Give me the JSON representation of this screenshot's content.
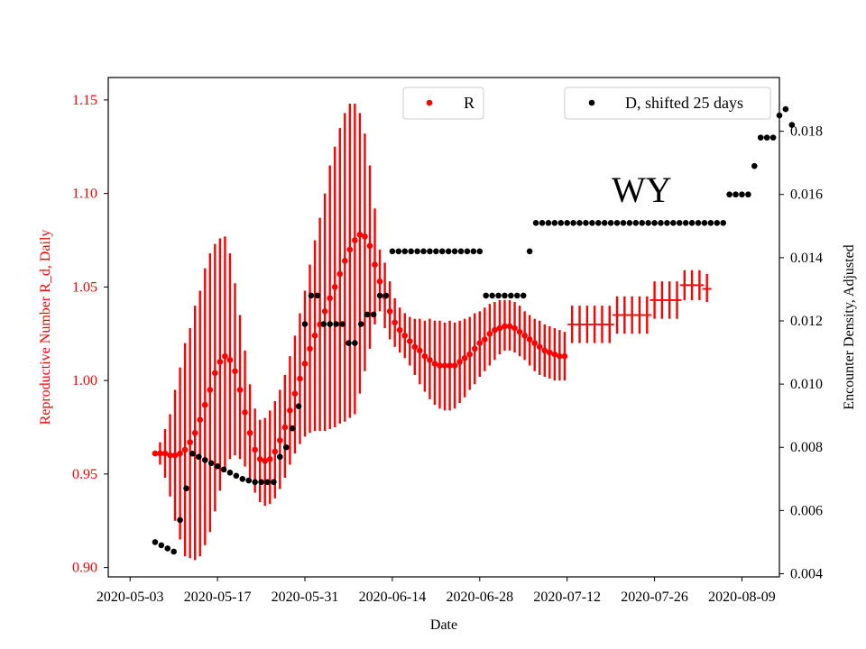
{
  "chart_data": {
    "type": "scatter",
    "title": "",
    "annotation": "WY",
    "xlabel": "Date",
    "ylabel_left": "Reproductive Number R_d, Daily",
    "ylabel_right": "Encounter Density, Adjusted",
    "xlim_days": [
      -3.5,
      104
    ],
    "ylim_left": [
      0.895,
      1.162
    ],
    "ylim_right": [
      0.0039,
      0.0197
    ],
    "x_ticks": [
      {
        "day": 0,
        "label": "2020-05-03"
      },
      {
        "day": 14,
        "label": "2020-05-17"
      },
      {
        "day": 28,
        "label": "2020-05-31"
      },
      {
        "day": 42,
        "label": "2020-06-14"
      },
      {
        "day": 56,
        "label": "2020-06-28"
      },
      {
        "day": 70,
        "label": "2020-07-12"
      },
      {
        "day": 84,
        "label": "2020-07-26"
      },
      {
        "day": 98,
        "label": "2020-08-09"
      }
    ],
    "y_ticks_left": [
      "0.90",
      "0.95",
      "1.00",
      "1.05",
      "1.10",
      "1.15"
    ],
    "y_ticks_right": [
      "0.004",
      "0.006",
      "0.008",
      "0.010",
      "0.012",
      "0.014",
      "0.016",
      "0.018"
    ],
    "legend": [
      {
        "label": "R",
        "color": "#ff0000",
        "position": "top-center"
      },
      {
        "label": "D, shifted 25 days",
        "color": "#000000",
        "position": "top-right"
      }
    ],
    "series": [
      {
        "name": "R",
        "axis": "left",
        "color": "#ff0000",
        "points": [
          [
            4,
            0.961,
            0.961,
            0.961
          ],
          [
            4.8,
            0.961,
            0.955,
            0.967
          ],
          [
            5.6,
            0.961,
            0.948,
            0.974
          ],
          [
            6.4,
            0.96,
            0.938,
            0.982
          ],
          [
            7.2,
            0.96,
            0.925,
            0.995
          ],
          [
            8,
            0.961,
            0.915,
            1.007
          ],
          [
            8.8,
            0.963,
            0.906,
            1.02
          ],
          [
            9.6,
            0.967,
            0.905,
            1.028
          ],
          [
            10.4,
            0.972,
            0.904,
            1.04
          ],
          [
            11.2,
            0.979,
            0.906,
            1.048
          ],
          [
            12,
            0.987,
            0.912,
            1.06
          ],
          [
            12.8,
            0.995,
            0.919,
            1.068
          ],
          [
            13.6,
            1.004,
            0.93,
            1.073
          ],
          [
            14.4,
            1.01,
            0.941,
            1.076
          ],
          [
            15.2,
            1.013,
            0.951,
            1.077
          ],
          [
            16,
            1.011,
            0.958,
            1.068
          ],
          [
            16.8,
            1.005,
            0.96,
            1.052
          ],
          [
            17.6,
            0.995,
            0.958,
            1.035
          ],
          [
            18.4,
            0.983,
            0.954,
            1.016
          ],
          [
            19.2,
            0.972,
            0.946,
            0.998
          ],
          [
            20,
            0.963,
            0.94,
            0.985
          ],
          [
            20.8,
            0.958,
            0.935,
            0.979
          ],
          [
            21.6,
            0.957,
            0.933,
            0.98
          ],
          [
            22.4,
            0.958,
            0.934,
            0.984
          ],
          [
            23.2,
            0.962,
            0.937,
            0.989
          ],
          [
            24,
            0.968,
            0.942,
            0.995
          ],
          [
            24.8,
            0.975,
            0.948,
            1.003
          ],
          [
            25.6,
            0.984,
            0.955,
            1.013
          ],
          [
            26.4,
            0.993,
            0.961,
            1.024
          ],
          [
            27.2,
            1.001,
            0.966,
            1.036
          ],
          [
            28,
            1.009,
            0.97,
            1.048
          ],
          [
            28.8,
            1.017,
            0.972,
            1.062
          ],
          [
            29.6,
            1.024,
            0.973,
            1.075
          ],
          [
            30.4,
            1.03,
            0.973,
            1.087
          ],
          [
            31.2,
            1.037,
            0.973,
            1.1
          ],
          [
            32,
            1.044,
            0.974,
            1.115
          ],
          [
            32.8,
            1.05,
            0.975,
            1.125
          ],
          [
            33.6,
            1.057,
            0.977,
            1.135
          ],
          [
            34.4,
            1.064,
            0.978,
            1.143
          ],
          [
            35.2,
            1.07,
            0.98,
            1.148
          ],
          [
            36,
            1.075,
            0.982,
            1.148
          ],
          [
            36.8,
            1.078,
            0.993,
            1.143
          ],
          [
            37.6,
            1.077,
            1.005,
            1.132
          ],
          [
            38.4,
            1.072,
            1.017,
            1.115
          ],
          [
            39.2,
            1.062,
            1.03,
            1.092
          ],
          [
            40,
            1.053,
            1.037,
            1.07
          ],
          [
            40.8,
            1.045,
            1.028,
            1.063
          ],
          [
            41.6,
            1.037,
            1.022,
            1.053
          ],
          [
            42.4,
            1.031,
            1.018,
            1.044
          ],
          [
            43.2,
            1.027,
            1.015,
            1.039
          ],
          [
            44,
            1.024,
            1.012,
            1.036
          ],
          [
            44.8,
            1.021,
            1.008,
            1.034
          ],
          [
            45.6,
            1.018,
            1.003,
            1.033
          ],
          [
            46.4,
            1.016,
            0.998,
            1.033
          ],
          [
            47.2,
            1.013,
            0.994,
            1.032
          ],
          [
            48,
            1.011,
            0.99,
            1.033
          ],
          [
            48.8,
            1.009,
            0.987,
            1.032
          ],
          [
            49.6,
            1.008,
            0.985,
            1.032
          ],
          [
            50.4,
            1.008,
            0.984,
            1.031
          ],
          [
            51.2,
            1.008,
            0.984,
            1.032
          ],
          [
            52,
            1.008,
            0.985,
            1.031
          ],
          [
            52.8,
            1.01,
            0.988,
            1.032
          ],
          [
            53.6,
            1.012,
            0.991,
            1.033
          ],
          [
            54.4,
            1.014,
            0.995,
            1.034
          ],
          [
            55.2,
            1.017,
            0.998,
            1.036
          ],
          [
            56,
            1.02,
            1.002,
            1.037
          ],
          [
            56.8,
            1.022,
            1.005,
            1.039
          ],
          [
            57.6,
            1.025,
            1.008,
            1.041
          ],
          [
            58.4,
            1.027,
            1.011,
            1.042
          ],
          [
            59.2,
            1.028,
            1.014,
            1.043
          ],
          [
            60,
            1.029,
            1.016,
            1.043
          ],
          [
            60.8,
            1.029,
            1.016,
            1.043
          ],
          [
            61.6,
            1.028,
            1.015,
            1.042
          ],
          [
            62.4,
            1.026,
            1.013,
            1.04
          ],
          [
            63.2,
            1.024,
            1.011,
            1.037
          ],
          [
            64,
            1.022,
            1.008,
            1.035
          ],
          [
            64.8,
            1.02,
            1.005,
            1.033
          ],
          [
            65.6,
            1.018,
            1.003,
            1.032
          ],
          [
            66.4,
            1.016,
            1.002,
            1.03
          ],
          [
            67.2,
            1.015,
            1.001,
            1.029
          ],
          [
            68,
            1.014,
            1.0,
            1.028
          ],
          [
            68.8,
            1.013,
            1.0,
            1.027
          ],
          [
            69.6,
            1.013,
            1.0,
            1.026
          ],
          [
            70.8,
            1.03,
            1.02,
            1.04
          ],
          [
            72,
            1.03,
            1.02,
            1.04
          ],
          [
            73.2,
            1.03,
            1.02,
            1.04
          ],
          [
            74.4,
            1.03,
            1.02,
            1.04
          ],
          [
            75.6,
            1.03,
            1.02,
            1.04
          ],
          [
            76.8,
            1.03,
            1.02,
            1.04
          ],
          [
            78,
            1.035,
            1.025,
            1.045
          ],
          [
            79.2,
            1.035,
            1.025,
            1.045
          ],
          [
            80.4,
            1.035,
            1.025,
            1.045
          ],
          [
            81.6,
            1.035,
            1.025,
            1.045
          ],
          [
            82.8,
            1.035,
            1.025,
            1.045
          ],
          [
            84,
            1.043,
            1.033,
            1.053
          ],
          [
            85.2,
            1.043,
            1.033,
            1.053
          ],
          [
            86.4,
            1.043,
            1.033,
            1.053
          ],
          [
            87.6,
            1.043,
            1.033,
            1.053
          ],
          [
            88.8,
            1.051,
            1.043,
            1.059
          ],
          [
            90,
            1.051,
            1.043,
            1.059
          ],
          [
            91.2,
            1.051,
            1.043,
            1.059
          ],
          [
            92.4,
            1.049,
            1.042,
            1.057
          ]
        ]
      },
      {
        "name": "D, shifted 25 days",
        "axis": "right",
        "color": "#000000",
        "points": [
          [
            4,
            0.005
          ],
          [
            5,
            0.0049
          ],
          [
            6,
            0.0048
          ],
          [
            7,
            0.0047
          ],
          [
            8,
            0.0057
          ],
          [
            9,
            0.0067
          ],
          [
            10,
            0.0078
          ],
          [
            11,
            0.0077
          ],
          [
            12,
            0.0076
          ],
          [
            13,
            0.0075
          ],
          [
            14,
            0.0074
          ],
          [
            15,
            0.0073
          ],
          [
            16,
            0.0072
          ],
          [
            17,
            0.0071
          ],
          [
            18,
            0.007
          ],
          [
            19,
            0.00695
          ],
          [
            20,
            0.0069
          ],
          [
            21,
            0.0069
          ],
          [
            22,
            0.0069
          ],
          [
            23,
            0.0069
          ],
          [
            24,
            0.0077
          ],
          [
            25,
            0.008
          ],
          [
            26,
            0.0086
          ],
          [
            27,
            0.0093
          ],
          [
            28,
            0.0119
          ],
          [
            29,
            0.0128
          ],
          [
            30,
            0.0128
          ],
          [
            31,
            0.0119
          ],
          [
            32,
            0.0119
          ],
          [
            33,
            0.0119
          ],
          [
            34,
            0.0119
          ],
          [
            35,
            0.0113
          ],
          [
            36,
            0.0113
          ],
          [
            37,
            0.0119
          ],
          [
            38,
            0.0122
          ],
          [
            39,
            0.0122
          ],
          [
            40,
            0.0128
          ],
          [
            41,
            0.0128
          ],
          [
            42,
            0.0142
          ],
          [
            43,
            0.0142
          ],
          [
            44,
            0.0142
          ],
          [
            45,
            0.0142
          ],
          [
            46,
            0.0142
          ],
          [
            47,
            0.0142
          ],
          [
            48,
            0.0142
          ],
          [
            49,
            0.0142
          ],
          [
            50,
            0.0142
          ],
          [
            51,
            0.0142
          ],
          [
            52,
            0.0142
          ],
          [
            53,
            0.0142
          ],
          [
            54,
            0.0142
          ],
          [
            55,
            0.0142
          ],
          [
            56,
            0.0142
          ],
          [
            57,
            0.0128
          ],
          [
            58,
            0.0128
          ],
          [
            59,
            0.0128
          ],
          [
            60,
            0.0128
          ],
          [
            61,
            0.0128
          ],
          [
            62,
            0.0128
          ],
          [
            63,
            0.0128
          ],
          [
            64,
            0.0142
          ],
          [
            65,
            0.0151
          ],
          [
            66,
            0.0151
          ],
          [
            67,
            0.0151
          ],
          [
            68,
            0.0151
          ],
          [
            69,
            0.0151
          ],
          [
            70,
            0.0151
          ],
          [
            71,
            0.0151
          ],
          [
            72,
            0.0151
          ],
          [
            73,
            0.0151
          ],
          [
            74,
            0.0151
          ],
          [
            75,
            0.0151
          ],
          [
            76,
            0.0151
          ],
          [
            77,
            0.0151
          ],
          [
            78,
            0.0151
          ],
          [
            79,
            0.0151
          ],
          [
            80,
            0.0151
          ],
          [
            81,
            0.0151
          ],
          [
            82,
            0.0151
          ],
          [
            83,
            0.0151
          ],
          [
            84,
            0.0151
          ],
          [
            85,
            0.0151
          ],
          [
            86,
            0.0151
          ],
          [
            87,
            0.0151
          ],
          [
            88,
            0.0151
          ],
          [
            89,
            0.0151
          ],
          [
            90,
            0.0151
          ],
          [
            91,
            0.0151
          ],
          [
            92,
            0.0151
          ],
          [
            93,
            0.0151
          ],
          [
            94,
            0.0151
          ],
          [
            95,
            0.0151
          ],
          [
            96,
            0.016
          ],
          [
            97,
            0.016
          ],
          [
            98,
            0.016
          ],
          [
            99,
            0.016
          ],
          [
            100,
            0.0169
          ],
          [
            101,
            0.0178
          ],
          [
            102,
            0.0178
          ],
          [
            103,
            0.0178
          ],
          [
            104,
            0.0185
          ],
          [
            105,
            0.0187
          ],
          [
            106,
            0.0182
          ]
        ]
      }
    ]
  }
}
